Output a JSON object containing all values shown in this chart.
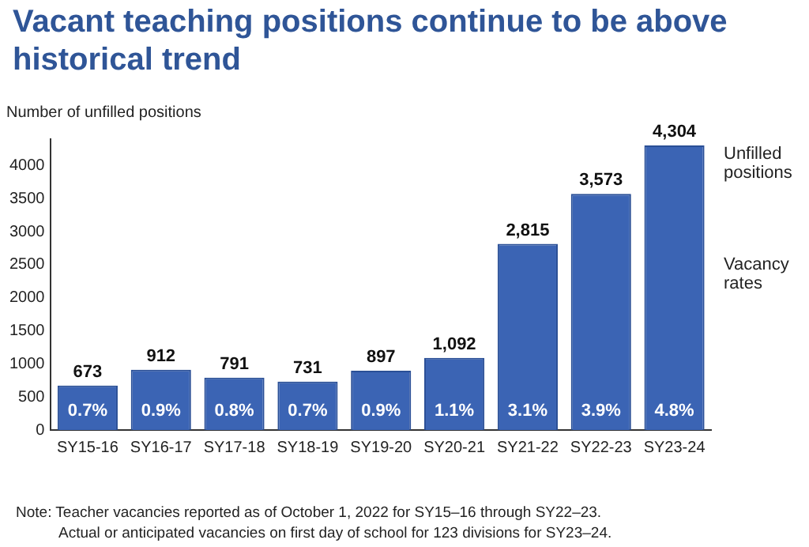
{
  "chart_data": {
    "type": "bar",
    "title": "Vacant teaching positions continue to be above historical trend",
    "ylabel": "Number of unfilled positions",
    "categories": [
      "SY15-16",
      "SY16-17",
      "SY17-18",
      "SY18-19",
      "SY19-20",
      "SY20-21",
      "SY21-22",
      "SY22-23",
      "SY23-24"
    ],
    "values": [
      673,
      912,
      791,
      731,
      897,
      1092,
      2815,
      3573,
      4304
    ],
    "value_labels": [
      "673",
      "912",
      "791",
      "731",
      "897",
      "1,092",
      "2,815",
      "3,573",
      "4,304"
    ],
    "color": "#3b64b4",
    "ylim": [
      0,
      4400
    ],
    "yticks": [
      0,
      500,
      1000,
      1500,
      2000,
      2500,
      3000,
      3500,
      4000
    ],
    "grid": false,
    "legend": false,
    "annotations": [
      "Unfilled positions",
      "Vacancy rates",
      "0.7%",
      "0.9%",
      "0.8%",
      "0.7%",
      "0.9%",
      "1.1%",
      "3.1%",
      "3.9%",
      "4.8%",
      "Note: Teacher vacancies reported as of October 1, 2022 for SY15–16 through SY22–23.",
      "Actual or anticipated vacancies on first day of school for 123 divisions for SY23–24."
    ]
  }
}
